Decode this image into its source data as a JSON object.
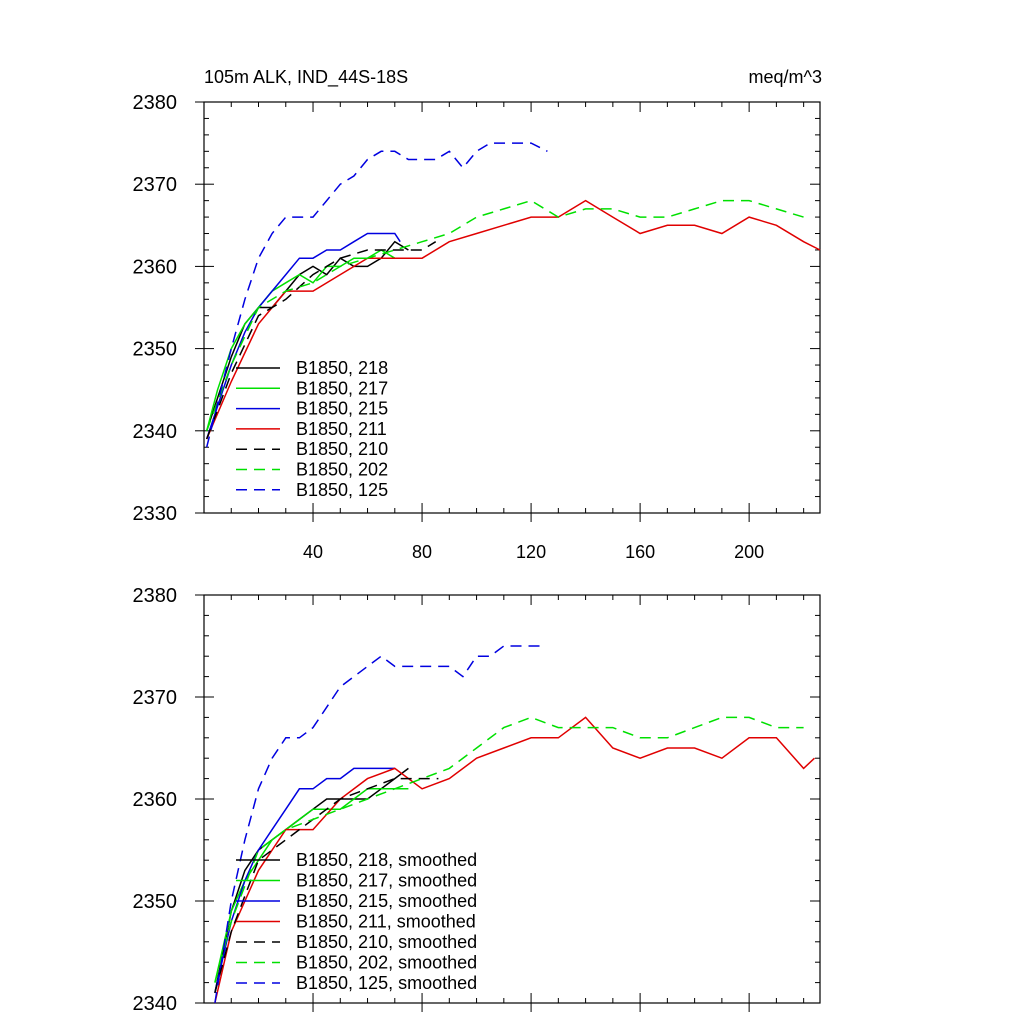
{
  "chart_data": [
    {
      "type": "line",
      "title_left": "105m ALK, IND_44S-18S",
      "title_right": "meq/m^3",
      "xlabel": "",
      "ylabel": "",
      "xlim": [
        0,
        226
      ],
      "ylim": [
        2330,
        2380
      ],
      "xticks": [
        40,
        80,
        120,
        160,
        200
      ],
      "xtick_labels": [
        "40",
        "80",
        "120",
        "160",
        "200"
      ],
      "yticks": [
        2330,
        2340,
        2350,
        2360,
        2370,
        2380
      ],
      "ytick_labels": [
        "2330",
        "2340",
        "2350",
        "2360",
        "2370",
        "2380"
      ],
      "legend_position": "bottom-left",
      "series": [
        {
          "name": "B1850, 218",
          "label": "B1850, 218",
          "color": "#000000",
          "dash": "solid",
          "x": [
            1,
            5,
            10,
            15,
            20,
            25,
            30,
            35,
            40,
            45,
            50,
            55,
            60,
            65,
            70,
            75
          ],
          "values": [
            2340,
            2344,
            2349,
            2353,
            2355,
            2355,
            2357,
            2359,
            2360,
            2359,
            2361,
            2360,
            2360,
            2361,
            2363,
            2362
          ]
        },
        {
          "name": "B1850, 217",
          "label": "B1850, 217",
          "color": "#00e000",
          "dash": "solid",
          "x": [
            1,
            5,
            10,
            15,
            20,
            25,
            30,
            35,
            40,
            45,
            50,
            55,
            60,
            65,
            70,
            75
          ],
          "values": [
            2340,
            2345,
            2350,
            2353,
            2355,
            2357,
            2358,
            2359,
            2358,
            2360,
            2360,
            2361,
            2361,
            2362,
            2361,
            2361
          ]
        },
        {
          "name": "B1850, 215",
          "label": "B1850, 215",
          "color": "#0000e0",
          "dash": "solid",
          "x": [
            1,
            5,
            10,
            15,
            20,
            25,
            30,
            35,
            40,
            45,
            50,
            55,
            60,
            65,
            70,
            72
          ],
          "values": [
            2339,
            2343,
            2348,
            2352,
            2355,
            2357,
            2359,
            2361,
            2361,
            2362,
            2362,
            2363,
            2364,
            2364,
            2364,
            2363
          ]
        },
        {
          "name": "B1850, 211",
          "label": "B1850, 211",
          "color": "#e00000",
          "dash": "solid",
          "x": [
            1,
            10,
            20,
            30,
            40,
            50,
            60,
            70,
            80,
            90,
            100,
            110,
            120,
            130,
            140,
            150,
            160,
            170,
            180,
            190,
            200,
            210,
            220,
            226
          ],
          "values": [
            2339,
            2346,
            2353,
            2357,
            2357,
            2359,
            2361,
            2361,
            2361,
            2363,
            2364,
            2365,
            2366,
            2366,
            2368,
            2366,
            2364,
            2365,
            2365,
            2364,
            2366,
            2365,
            2363,
            2362
          ]
        },
        {
          "name": "B1850, 210",
          "label": "B1850, 210",
          "color": "#000000",
          "dash": "dashed",
          "x": [
            1,
            10,
            20,
            30,
            40,
            50,
            60,
            70,
            80,
            85
          ],
          "values": [
            2339,
            2347,
            2354,
            2356,
            2359,
            2361,
            2362,
            2362,
            2362,
            2363
          ]
        },
        {
          "name": "B1850, 202",
          "label": "B1850, 202",
          "color": "#00e000",
          "dash": "dashed",
          "x": [
            1,
            10,
            20,
            30,
            40,
            50,
            60,
            70,
            80,
            90,
            100,
            110,
            120,
            130,
            140,
            150,
            160,
            170,
            180,
            190,
            200,
            210,
            220
          ],
          "values": [
            2340,
            2348,
            2355,
            2357,
            2358,
            2360,
            2361,
            2362,
            2363,
            2364,
            2366,
            2367,
            2368,
            2366,
            2367,
            2367,
            2366,
            2366,
            2367,
            2368,
            2368,
            2367,
            2366
          ]
        },
        {
          "name": "B1850, 125",
          "label": "B1850, 125",
          "color": "#0000e0",
          "dash": "dashed",
          "x": [
            1,
            10,
            15,
            20,
            25,
            30,
            35,
            40,
            45,
            50,
            55,
            60,
            65,
            70,
            75,
            80,
            85,
            90,
            95,
            100,
            105,
            110,
            115,
            120,
            126
          ],
          "values": [
            2338,
            2350,
            2356,
            2361,
            2364,
            2366,
            2366,
            2366,
            2368,
            2370,
            2371,
            2373,
            2374,
            2374,
            2373,
            2373,
            2373,
            2374,
            2372,
            2374,
            2375,
            2375,
            2375,
            2375,
            2374
          ]
        }
      ]
    },
    {
      "type": "line",
      "xlabel": "",
      "ylabel": "",
      "xlim": [
        0,
        226
      ],
      "ylim": [
        2340,
        2380
      ],
      "xticks": [
        40,
        80,
        120,
        160,
        200
      ],
      "yticks": [
        2340,
        2350,
        2360,
        2370,
        2380
      ],
      "ytick_labels": [
        "2340",
        "2350",
        "2360",
        "2370",
        "2380"
      ],
      "legend_position": "bottom-left",
      "series": [
        {
          "name": "B1850, 218, smoothed",
          "label": "B1850, 218, smoothed",
          "color": "#000000",
          "dash": "solid",
          "x": [
            4,
            10,
            15,
            20,
            25,
            30,
            35,
            40,
            45,
            50,
            55,
            60,
            65,
            70,
            75
          ],
          "values": [
            2341,
            2349,
            2353,
            2355,
            2356,
            2357,
            2358,
            2359,
            2360,
            2360,
            2360,
            2360,
            2361,
            2362,
            2363
          ]
        },
        {
          "name": "B1850, 217, smoothed",
          "label": "B1850, 217, smoothed",
          "color": "#00e000",
          "dash": "solid",
          "x": [
            4,
            10,
            15,
            20,
            25,
            30,
            35,
            40,
            45,
            50,
            55,
            60,
            65,
            70,
            75
          ],
          "values": [
            2342,
            2349,
            2352,
            2354,
            2356,
            2357,
            2358,
            2359,
            2359,
            2359,
            2360,
            2361,
            2361,
            2361,
            2361
          ]
        },
        {
          "name": "B1850, 215, smoothed",
          "label": "B1850, 215, smoothed",
          "color": "#0000e0",
          "dash": "solid",
          "x": [
            4,
            10,
            15,
            20,
            25,
            30,
            35,
            40,
            45,
            50,
            55,
            60,
            65,
            70
          ],
          "values": [
            2341,
            2348,
            2352,
            2355,
            2357,
            2359,
            2361,
            2361,
            2362,
            2362,
            2363,
            2363,
            2363,
            2363
          ]
        },
        {
          "name": "B1850, 211, smoothed",
          "label": "B1850, 211, smoothed",
          "color": "#e00000",
          "dash": "solid",
          "x": [
            4,
            10,
            20,
            30,
            40,
            50,
            60,
            70,
            80,
            90,
            100,
            110,
            120,
            130,
            140,
            150,
            160,
            170,
            180,
            190,
            200,
            210,
            220,
            224
          ],
          "values": [
            2340,
            2347,
            2353,
            2357,
            2357,
            2360,
            2362,
            2363,
            2361,
            2362,
            2364,
            2365,
            2366,
            2366,
            2368,
            2365,
            2364,
            2365,
            2365,
            2364,
            2366,
            2366,
            2363,
            2364
          ]
        },
        {
          "name": "B1850, 210, smoothed",
          "label": "B1850, 210, smoothed",
          "color": "#000000",
          "dash": "dashed",
          "x": [
            4,
            10,
            20,
            30,
            40,
            50,
            60,
            70,
            80,
            86
          ],
          "values": [
            2341,
            2347,
            2354,
            2356,
            2358,
            2360,
            2361,
            2362,
            2362,
            2362
          ]
        },
        {
          "name": "B1850, 202, smoothed",
          "label": "B1850, 202, smoothed",
          "color": "#00e000",
          "dash": "dashed",
          "x": [
            4,
            10,
            20,
            30,
            40,
            50,
            60,
            70,
            80,
            90,
            100,
            110,
            120,
            130,
            140,
            150,
            160,
            170,
            180,
            190,
            200,
            210,
            220
          ],
          "values": [
            2342,
            2348,
            2355,
            2357,
            2358,
            2359,
            2360,
            2361,
            2362,
            2363,
            2365,
            2367,
            2368,
            2367,
            2367,
            2367,
            2366,
            2366,
            2367,
            2368,
            2368,
            2367,
            2367
          ]
        },
        {
          "name": "B1850, 125, smoothed",
          "label": "B1850, 125, smoothed",
          "color": "#0000e0",
          "dash": "dashed",
          "x": [
            4,
            10,
            15,
            20,
            25,
            30,
            35,
            40,
            45,
            50,
            55,
            60,
            65,
            70,
            75,
            80,
            85,
            90,
            95,
            100,
            105,
            110,
            115,
            120,
            124
          ],
          "values": [
            2340,
            2350,
            2356,
            2361,
            2364,
            2366,
            2366,
            2367,
            2369,
            2371,
            2372,
            2373,
            2374,
            2373,
            2373,
            2373,
            2373,
            2373,
            2372,
            2374,
            2374,
            2375,
            2375,
            2375,
            2375
          ]
        }
      ]
    }
  ]
}
